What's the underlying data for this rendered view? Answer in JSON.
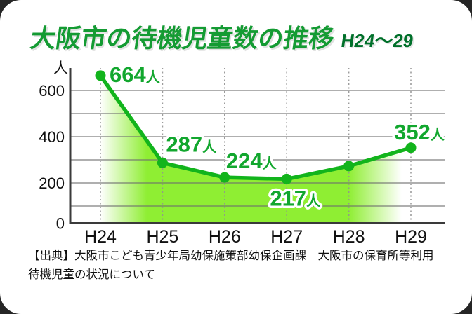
{
  "card": {
    "title": "大阪市の待機児童数の推移",
    "title_suffix": "H24〜29",
    "source_line1": "【出典】大阪市こども青少年局幼保施策部幼保企画課　大阪市の保育所等利用",
    "source_line2": "待機児童の状況について"
  },
  "colors": {
    "title_green": "#149b33",
    "title_dark_green": "#00702a",
    "line_green": "#12b41c",
    "fill_green": "#8fee33",
    "label_green": "#12a72e",
    "axis": "#3a3a3a",
    "grid": "#9a9a9a",
    "tick_text": "#111111",
    "card_bg": "#ffffff",
    "page_bg": "#262626"
  },
  "chart_data": {
    "type": "area",
    "title": "大阪市の待機児童数の推移 H24〜29",
    "categories": [
      "H24",
      "H25",
      "H26",
      "H27",
      "H28",
      "H29"
    ],
    "series": [
      {
        "name": "待機児童数",
        "values": [
          664,
          287,
          224,
          217,
          273,
          352
        ]
      }
    ],
    "point_labels": [
      {
        "num": "664",
        "unit": "人"
      },
      {
        "num": "287",
        "unit": "人"
      },
      {
        "num": "224",
        "unit": "人"
      },
      {
        "num": "217",
        "unit": "人"
      },
      null,
      {
        "num": "352",
        "unit": "人"
      }
    ],
    "unit_label": "人",
    "yticks": [
      0,
      200,
      400,
      600
    ],
    "gridline_step": 100,
    "ylim": [
      0,
      700
    ],
    "grid": true,
    "legend": "none",
    "xlabel": "",
    "ylabel": "人"
  }
}
